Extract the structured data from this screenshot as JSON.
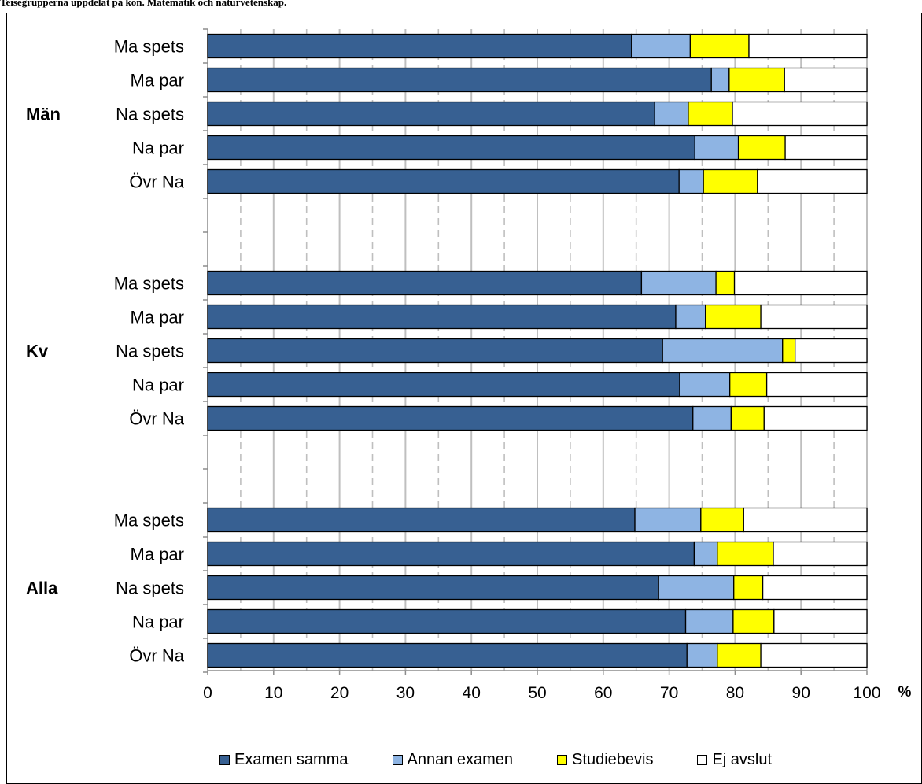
{
  "caption": "Teisegrupperna uppdelat på kön. Matematik och naturvetenskap.",
  "chart_data": {
    "type": "bar",
    "orientation": "horizontal",
    "stacked": true,
    "x_unit": "%",
    "xlim": [
      0,
      100
    ],
    "x_ticks": [
      0,
      10,
      20,
      30,
      40,
      50,
      60,
      70,
      80,
      90,
      100
    ],
    "grid": "vertical",
    "legend_position": "bottom",
    "groups": [
      {
        "label": "Män",
        "categories": [
          "Ma spets",
          "Ma par",
          "Na spets",
          "Na par",
          "Övr Na"
        ]
      },
      {
        "label": "Kv",
        "categories": [
          "Ma spets",
          "Ma par",
          "Na spets",
          "Na par",
          "Övr Na"
        ]
      },
      {
        "label": "Alla",
        "categories": [
          "Ma spets",
          "Ma par",
          "Na spets",
          "Na par",
          "Övr Na"
        ]
      }
    ],
    "series": [
      {
        "name": "Examen samma",
        "color": "#376092",
        "values": [
          [
            64.3,
            76.4,
            67.8,
            73.9,
            71.5
          ],
          [
            65.8,
            71.0,
            69.0,
            71.6,
            73.6
          ],
          [
            64.8,
            73.8,
            68.4,
            72.5,
            72.7
          ]
        ]
      },
      {
        "name": "Annan examen",
        "color": "#8EB4E3",
        "values": [
          [
            8.9,
            2.7,
            5.1,
            6.6,
            3.7
          ],
          [
            11.3,
            4.5,
            18.2,
            7.6,
            5.8
          ],
          [
            10.0,
            3.5,
            11.4,
            7.2,
            4.6
          ]
        ]
      },
      {
        "name": "Studiebevis",
        "color": "#FFFF00",
        "values": [
          [
            8.9,
            8.4,
            6.7,
            7.1,
            8.2
          ],
          [
            2.8,
            8.4,
            1.9,
            5.6,
            5.0
          ],
          [
            6.5,
            8.5,
            4.4,
            6.2,
            6.6
          ]
        ]
      },
      {
        "name": "Ej avslut",
        "color": "#FFFFFF",
        "values": [
          [
            17.9,
            12.5,
            20.4,
            12.4,
            16.6
          ],
          [
            20.1,
            16.1,
            10.9,
            15.2,
            15.6
          ],
          [
            18.7,
            14.2,
            15.8,
            14.1,
            16.1
          ]
        ]
      }
    ]
  }
}
